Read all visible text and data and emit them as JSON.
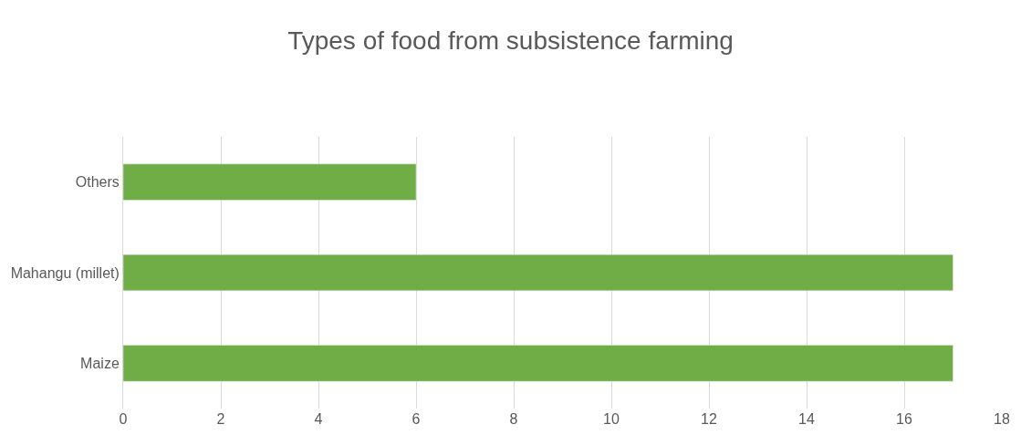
{
  "chart_data": {
    "type": "bar",
    "orientation": "horizontal",
    "title": "Types of food from subsistence farming",
    "categories": [
      "Others",
      "Mahangu (millet)",
      "Maize"
    ],
    "values": [
      6,
      17,
      17
    ],
    "color": "#70ad47",
    "xlim": [
      0,
      18
    ],
    "xticks": [
      0,
      2,
      4,
      6,
      8,
      10,
      12,
      14,
      16,
      18
    ],
    "grid": "x",
    "legend": false
  }
}
